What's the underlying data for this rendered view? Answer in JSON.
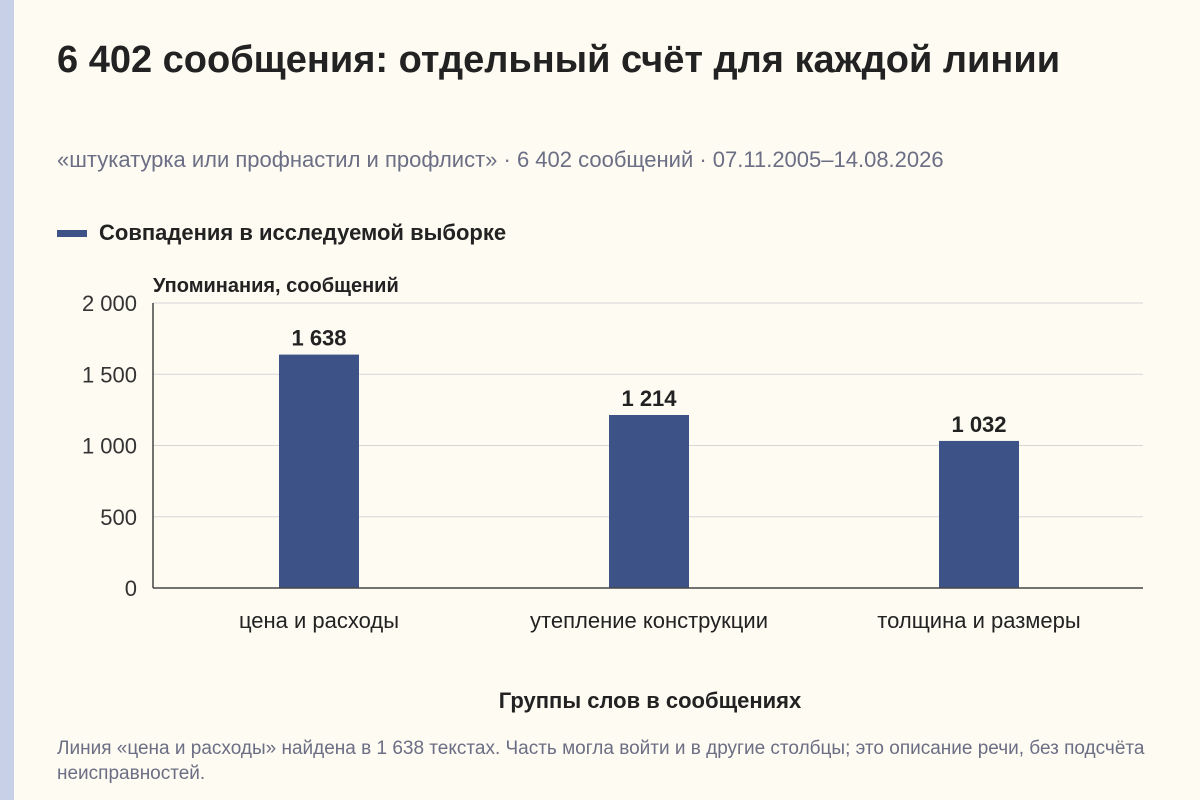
{
  "header": {
    "title": "6 402 сообщения: отдельный счёт для каждой линии",
    "subtitle": "«штукатурка или профнастил и профлист» · 6 402 сообщений · 07.11.2005–14.08.2026"
  },
  "footer": {
    "note": "Линия «цена и расходы» найдена в 1 638 текстах. Часть могла войти и в другие столбцы; это описание речи, без подсчёта неисправностей."
  },
  "colors": {
    "bar": "#3d5287",
    "background": "#fdfbf2",
    "accent_strip": "#c7d0e6"
  },
  "chart_data": {
    "type": "bar",
    "title": "6 402 сообщения: отдельный счёт для каждой линии",
    "xlabel": "Группы слов в сообщениях",
    "ylabel": "Упоминания, сообщений",
    "categories": [
      "цена и расходы",
      "утепление конструкции",
      "толщина и размеры"
    ],
    "series": [
      {
        "name": "Совпадения в исследуемой выборке",
        "values": [
          1638,
          1214,
          1032
        ]
      }
    ],
    "value_labels": [
      "1 638",
      "1 214",
      "1 032"
    ],
    "ylim": [
      0,
      2000
    ],
    "yticks": [
      0,
      500,
      1000,
      1500,
      2000
    ],
    "ytick_labels": [
      "0",
      "500",
      "1 000",
      "1 500",
      "2 000"
    ],
    "grid": true,
    "legend": "top-left"
  }
}
